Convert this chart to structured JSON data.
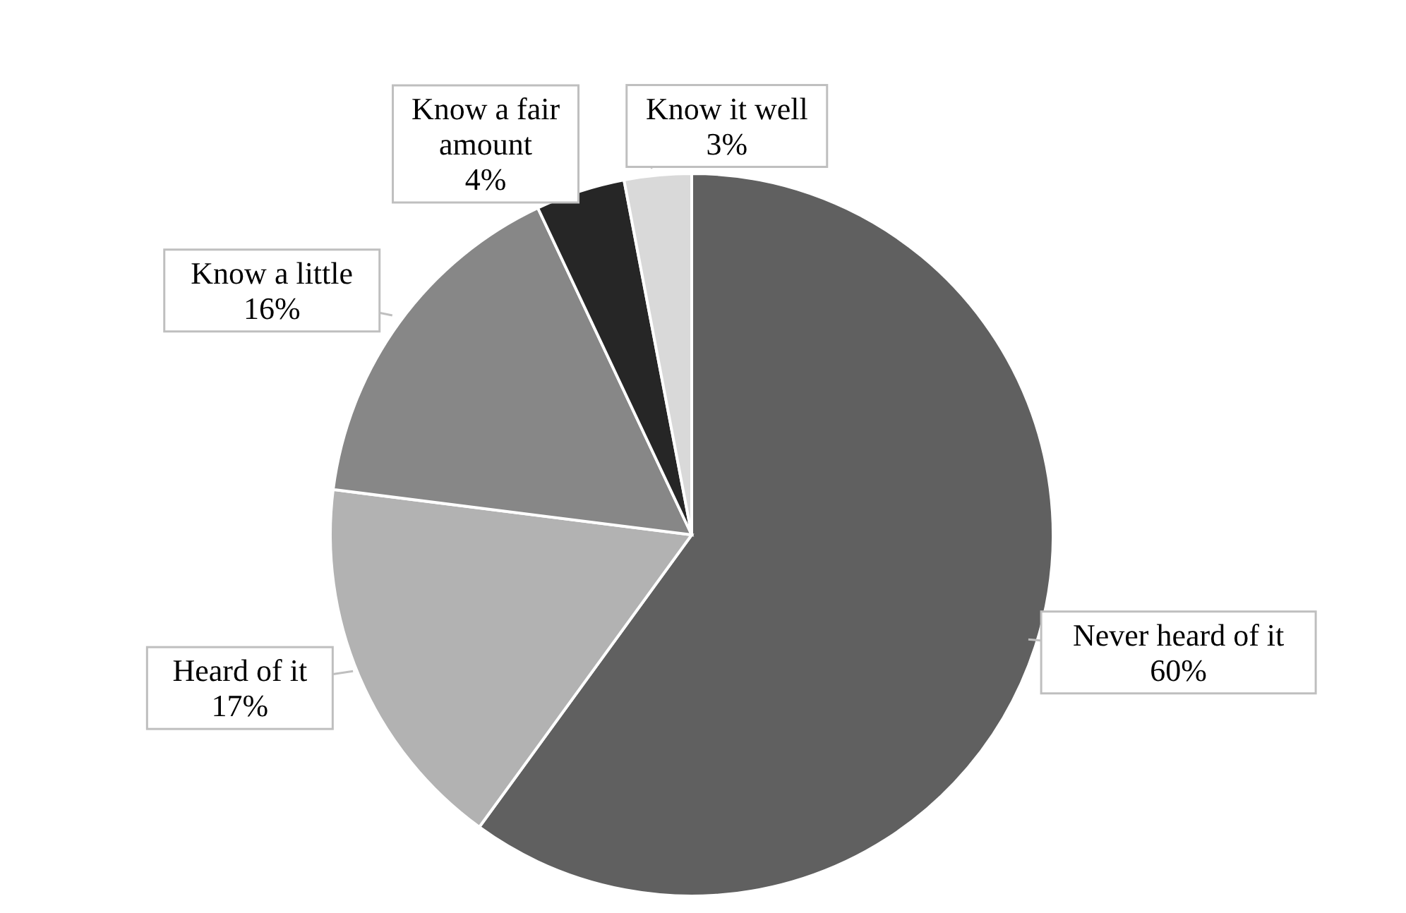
{
  "chart_data": {
    "type": "pie",
    "categories": [
      "Never heard of it",
      "Heard of it",
      "Know a little",
      "Know a fair amount",
      "Know it well"
    ],
    "values": [
      60,
      17,
      16,
      4,
      3
    ],
    "value_labels": [
      "60%",
      "17%",
      "16%",
      "4%",
      "3%"
    ],
    "colors": [
      "#606060",
      "#b2b2b2",
      "#878787",
      "#262626",
      "#d9d9d9"
    ]
  }
}
